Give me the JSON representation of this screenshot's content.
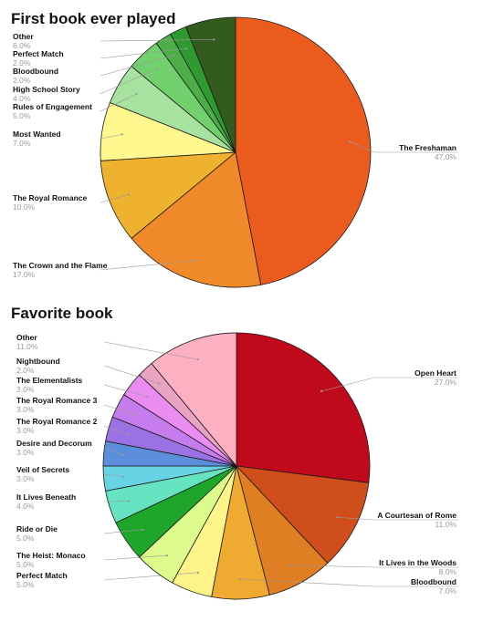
{
  "chart_data": [
    {
      "type": "pie",
      "title": "First book ever played",
      "categories": [
        "The Freshaman",
        "The Crown and the Flame",
        "The Royal Romance",
        "Most Wanted",
        "Rules of Engagement",
        "High School Story",
        "Bloodbound",
        "Perfect Match",
        "Other"
      ],
      "values": [
        47.0,
        17.0,
        10.0,
        7.0,
        5.0,
        4.0,
        2.0,
        2.0,
        6.0
      ],
      "value_labels": [
        "47.0%",
        "17.0%",
        "10.0%",
        "7.0%",
        "5.0%",
        "4.0%",
        "2.0%",
        "2.0%",
        "6.0%"
      ],
      "colors": [
        "#EC5B1E",
        "#F0892A",
        "#EFB22F",
        "#FFF88E",
        "#A8E2A0",
        "#72D06E",
        "#4DAE48",
        "#2E9A30",
        "#335B1E"
      ],
      "start_angle": 0,
      "direction": "clockwise"
    },
    {
      "type": "pie",
      "title": "Favorite book",
      "categories": [
        "Open Heart",
        "A Courtesan of Rome",
        "It Lives in the Woods",
        "Bloodbound",
        "Perfect Match",
        "The Heist: Monaco",
        "Ride or Die",
        "It Lives Beneath",
        "Veil of Secrets",
        "Desire and Decorum",
        "The Royal Romance 2",
        "The Royal Romance 3",
        "The Elementalists",
        "Nightbound",
        "Other"
      ],
      "values": [
        27.0,
        11.0,
        8.0,
        7.0,
        5.0,
        5.0,
        5.0,
        4.0,
        3.0,
        3.0,
        3.0,
        3.0,
        3.0,
        2.0,
        11.0
      ],
      "value_labels": [
        "27.0%",
        "11.0%",
        "8.0%",
        "7.0%",
        "5.0%",
        "5.0%",
        "5.0%",
        "4.0%",
        "3.0%",
        "3.0%",
        "3.0%",
        "3.0%",
        "3.0%",
        "2.0%",
        "11.0%"
      ],
      "colors": [
        "#C0091A",
        "#D04E1C",
        "#E07E24",
        "#EFAA32",
        "#FEF48A",
        "#DCFB8C",
        "#20A52B",
        "#66E3C0",
        "#68D3E5",
        "#5B8FDC",
        "#9A72E4",
        "#C67CEC",
        "#EA8CF2",
        "#E8A4C2",
        "#FDB0C2"
      ],
      "start_angle": 0,
      "direction": "clockwise"
    }
  ]
}
